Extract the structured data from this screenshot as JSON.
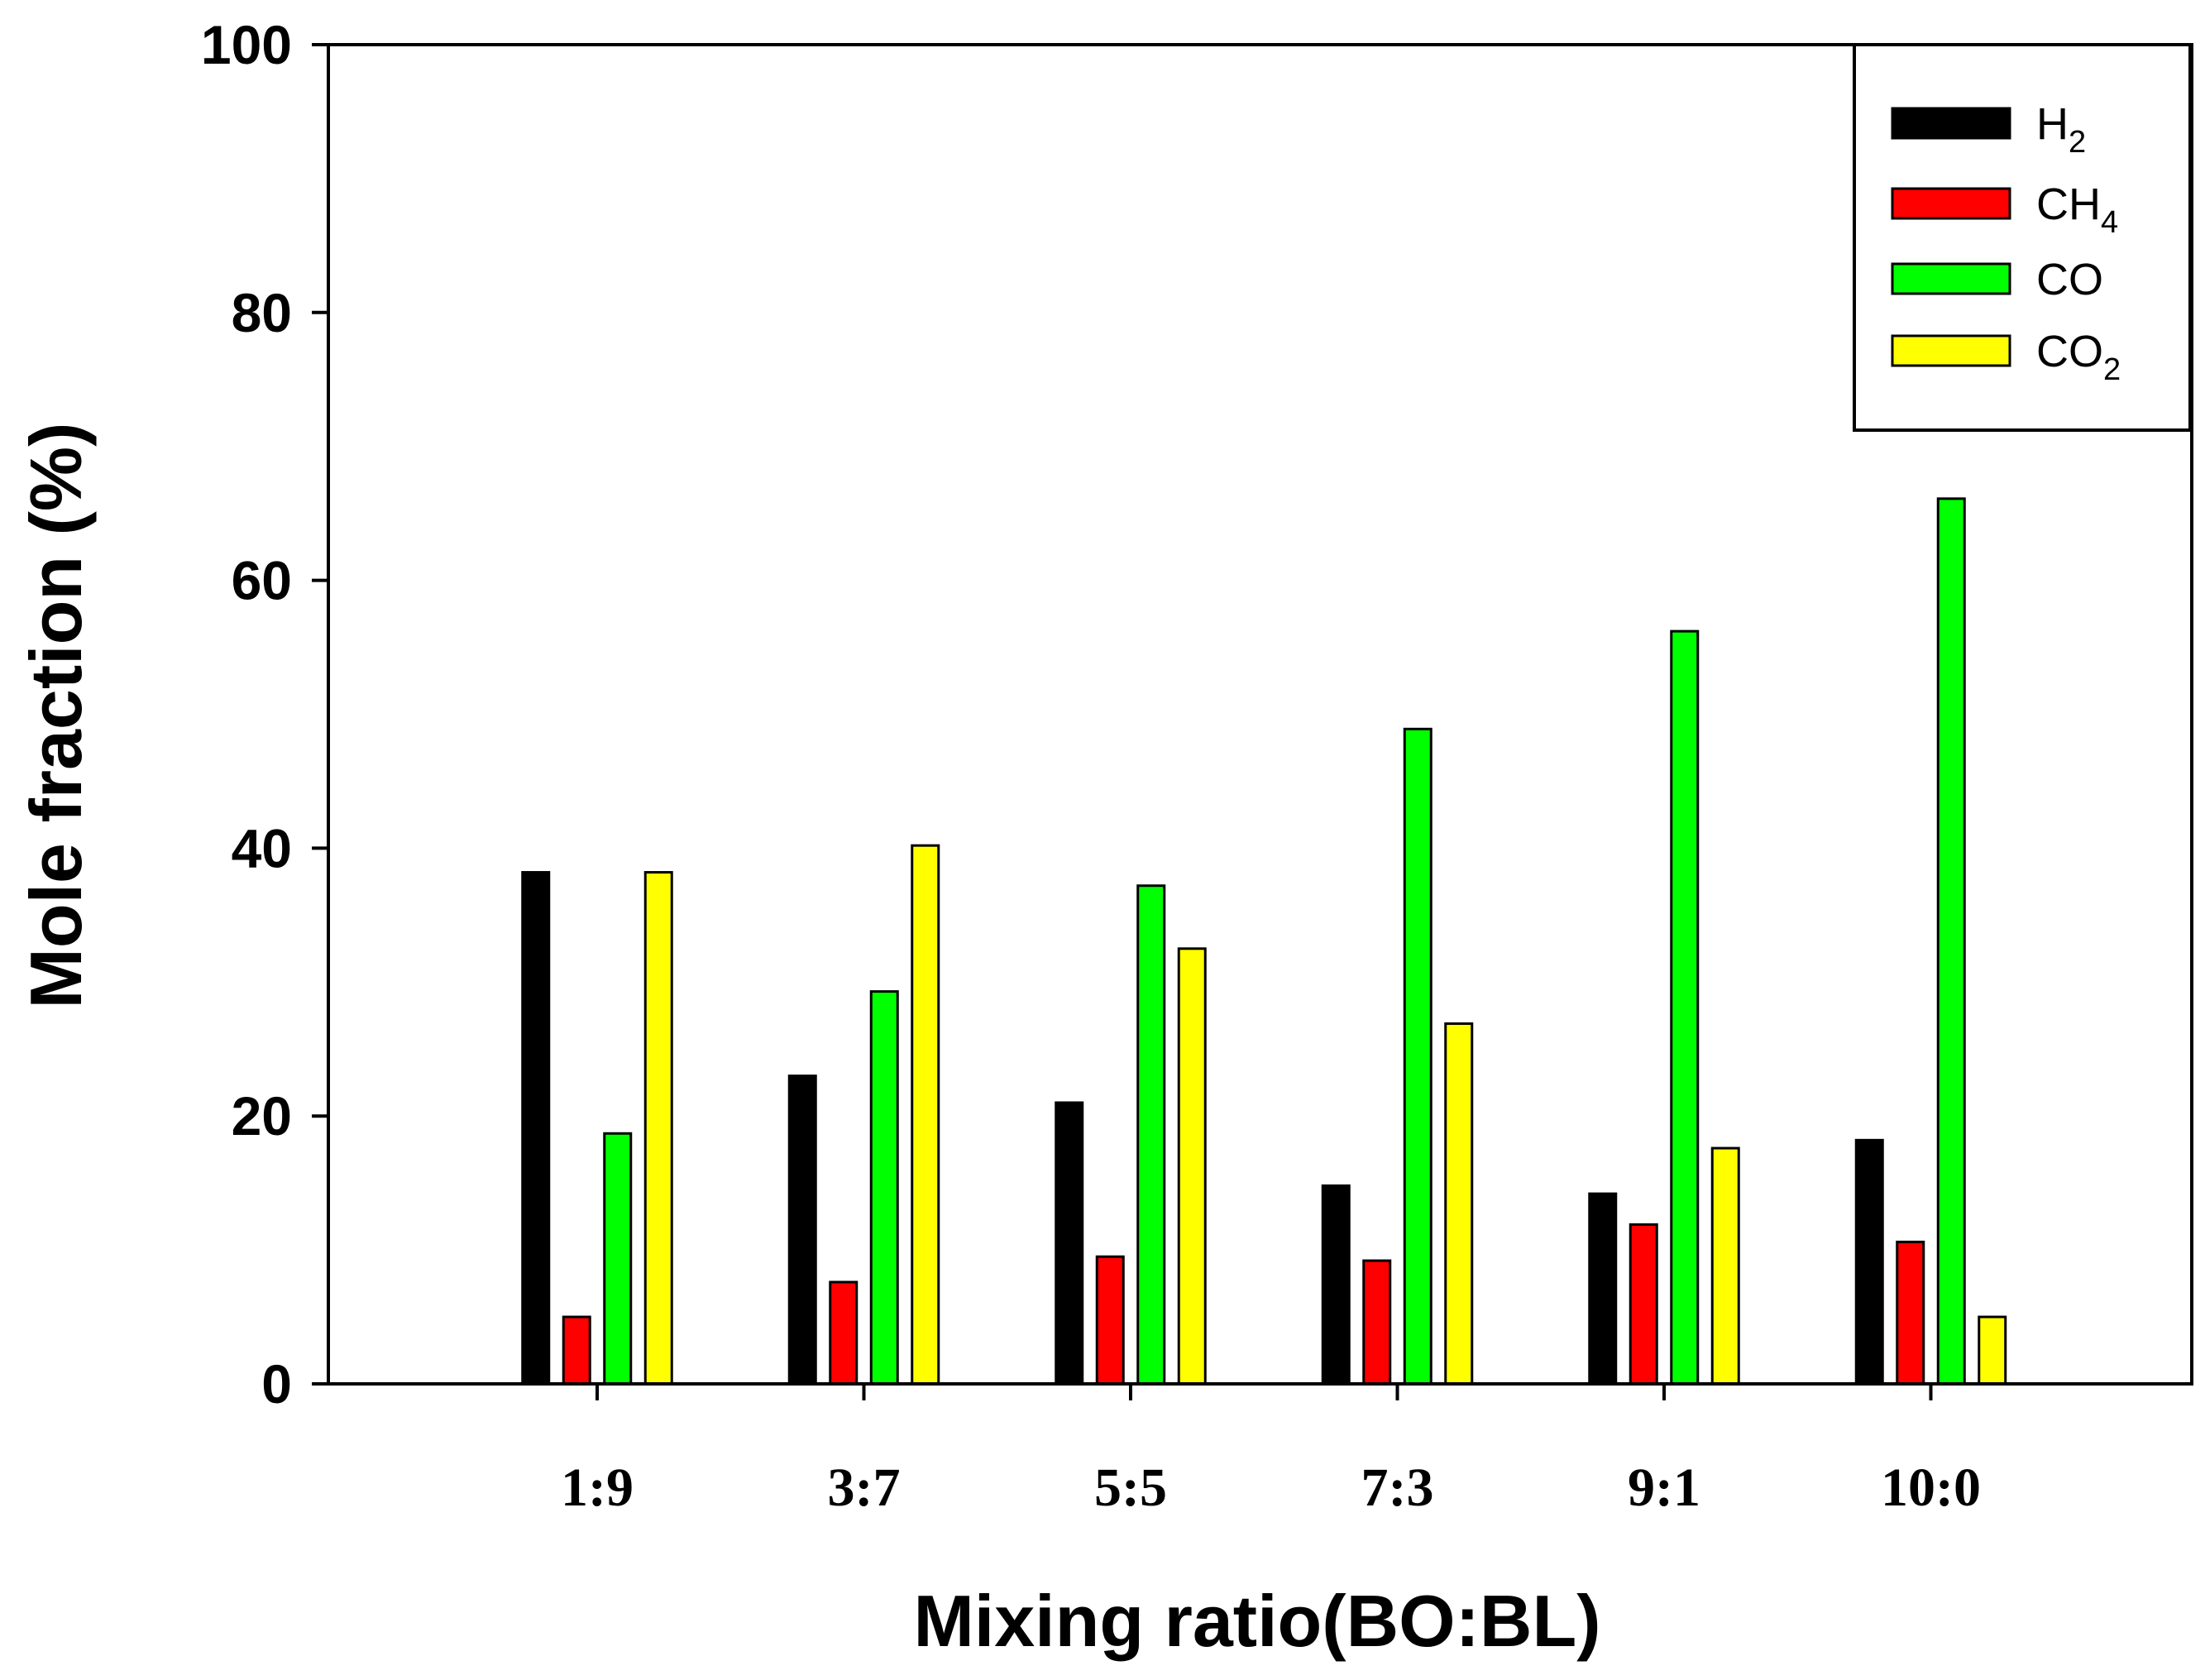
{
  "chart_data": {
    "type": "bar",
    "title": "",
    "xlabel": "Mixing ratio(BO:BL)",
    "ylabel": "Mole fraction (%)",
    "ylim": [
      0,
      100
    ],
    "yticks": [
      "0",
      "20",
      "40",
      "60",
      "80",
      "100"
    ],
    "categories": [
      "1:9",
      "3:7",
      "5:5",
      "7:3",
      "9:1",
      "10:0"
    ],
    "grid": false,
    "legend_position": "top-right",
    "series": [
      {
        "name": "H2",
        "label_base": "H",
        "label_sub": "2",
        "color": "#000000",
        "values": [
          38.2,
          23.0,
          21.0,
          14.8,
          14.2,
          18.2
        ]
      },
      {
        "name": "CH4",
        "label_base": "CH",
        "label_sub": "4",
        "color": "#ff0000",
        "values": [
          5.0,
          7.6,
          9.5,
          9.2,
          11.9,
          10.6
        ]
      },
      {
        "name": "CO",
        "label_base": "CO",
        "label_sub": "",
        "color": "#00ff00",
        "values": [
          18.7,
          29.3,
          37.2,
          48.9,
          56.2,
          66.1
        ]
      },
      {
        "name": "CO2",
        "label_base": "CO",
        "label_sub": "2",
        "color": "#ffff00",
        "values": [
          38.2,
          40.2,
          32.5,
          26.9,
          17.6,
          5.0
        ]
      }
    ]
  }
}
